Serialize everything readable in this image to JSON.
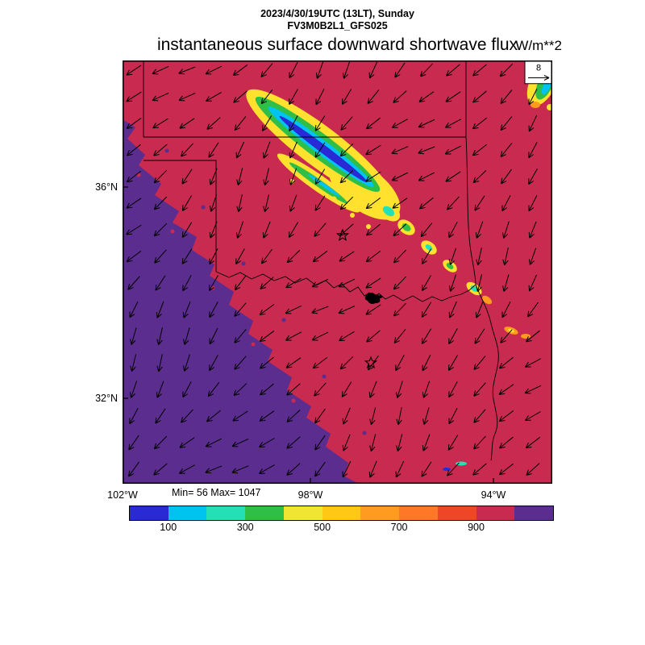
{
  "header": {
    "datetime": "2023/4/30/19UTC (13LT), Sunday",
    "model": "FV3M0B2L1_GFS025",
    "title": "instantaneous surface downward shortwave flux",
    "units": "W/m**2"
  },
  "axes": {
    "lat_labels": [
      "36°N",
      "32°N"
    ],
    "lon_labels": [
      "102°W",
      "98°W",
      "94°W"
    ]
  },
  "stats": {
    "min_max": "Min= 56 Max= 1047"
  },
  "vector_ref": {
    "value": "8"
  },
  "chart_data": {
    "type": "heatmap",
    "title": "instantaneous surface downward shortwave flux",
    "units": "W/m**2",
    "valid_time": "2023/4/30/19UTC (13LT), Sunday",
    "model_run": "FV3M0B2L1_GFS025",
    "field_min": 56,
    "field_max": 1047,
    "lat_ticks_deg_n": [
      36,
      32
    ],
    "lon_ticks_deg_w": [
      102,
      98,
      94
    ],
    "approx_extent": {
      "lon_w_range": [
        102,
        92.8
      ],
      "lat_n_range": [
        30.4,
        38.4
      ]
    },
    "colorbar": {
      "orientation": "horizontal",
      "levels": [
        0,
        100,
        200,
        300,
        400,
        500,
        600,
        700,
        800,
        900,
        1000,
        1100
      ],
      "tick_labels": [
        "100",
        "300",
        "500",
        "700",
        "900"
      ],
      "colors": [
        "#2929d6",
        "#00c3f0",
        "#23e1b4",
        "#2fbe46",
        "#f0e632",
        "#ffc814",
        "#ff9b1e",
        "#ff7828",
        "#f04628",
        "#c92a50",
        "#5b2d8e"
      ]
    },
    "wind": {
      "reference_value": 8,
      "typical_direction": "arrows point toward the southwest across the whole domain"
    },
    "field_summary": [
      {
        "region": "lower-left / southwest portion of domain",
        "value_range": "1000-1047",
        "color": "#5b2d8e"
      },
      {
        "region": "most of the domain background",
        "value_range": "900-1000",
        "color": "#c92a50"
      },
      {
        "region": "NW-SE cloud streak across Oklahoma with broken patches toward the southeast",
        "value_range": "56-700",
        "color": "yellow edge, green/cyan interior, blue core"
      },
      {
        "region": "small multicolor patch at top-right map corner",
        "value_range": "100-700",
        "color": "yellow/green/cyan"
      }
    ],
    "overlays": [
      "state boundary lines (thin black)",
      "Red River wiggly boundary with small black waterbody blob",
      "two open star markers",
      "wind vector arrows on regular grid",
      "vector reference box labeled 8 at top-right"
    ]
  }
}
